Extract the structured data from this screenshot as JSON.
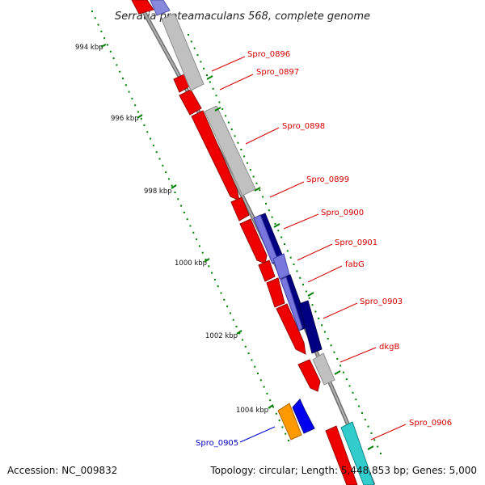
{
  "title": "Serratia proteamaculans 568, complete genome",
  "footer": {
    "accession": "Accession: NC_009832",
    "topology": "Topology: circular; Length: 5,448,853 bp; Genes: 5,000"
  },
  "ticks": [
    {
      "label": "994 kbp"
    },
    {
      "label": "996 kbp"
    },
    {
      "label": "998 kbp"
    },
    {
      "label": "1000 kbp"
    },
    {
      "label": "1002 kbp"
    },
    {
      "label": "1004 kbp"
    }
  ],
  "genes": [
    {
      "label": "Spro_0896",
      "color": "#d40000"
    },
    {
      "label": "Spro_0897",
      "color": "#d40000"
    },
    {
      "label": "Spro_0898",
      "color": "#d40000"
    },
    {
      "label": "Spro_0899",
      "color": "#d40000"
    },
    {
      "label": "Spro_0900",
      "color": "#d40000"
    },
    {
      "label": "Spro_0901",
      "color": "#d40000"
    },
    {
      "label": "fabG",
      "color": "#d40000"
    },
    {
      "label": "Spro_0903",
      "color": "#d40000"
    },
    {
      "label": "dkgB",
      "color": "#d40000"
    },
    {
      "label": "Spro_0905",
      "color": "#0000cc"
    },
    {
      "label": "Spro_0906",
      "color": "#d40000"
    }
  ],
  "colors": {
    "cds": "#ee0000",
    "cds_dark": "#990000",
    "rna": "#c0c0c0",
    "purple": "#7777dd",
    "navy": "#000080",
    "orange": "#ff9900",
    "blue": "#0000ee",
    "cyan": "#33cccc",
    "tick": "#008000",
    "backbone": "#808080"
  }
}
